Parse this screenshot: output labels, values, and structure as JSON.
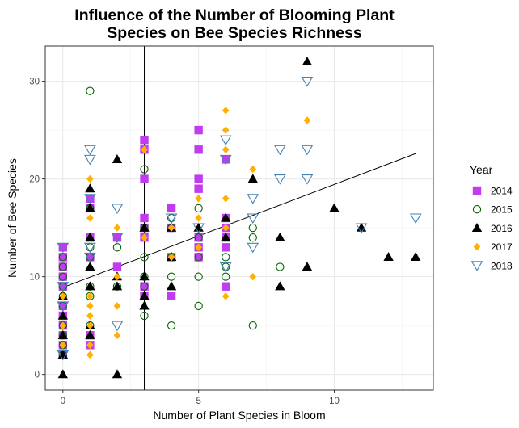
{
  "chart_data": {
    "type": "scatter",
    "title_lines": [
      "Influence of the Number of Blooming Plant",
      "Species on Bee Species Richness"
    ],
    "xlabel": "Number of Plant Species in Bloom",
    "ylabel": "Number of Bee Species",
    "xlim": [
      -0.65,
      13.65
    ],
    "ylim": [
      -1.6,
      33.6
    ],
    "x_ticks": [
      0,
      5,
      10
    ],
    "y_ticks": [
      0,
      10,
      20,
      30
    ],
    "grid": true,
    "legend_title": "Year",
    "legend_position": "right",
    "vline_x": 3,
    "trend_line": {
      "x": [
        0,
        13
      ],
      "y": [
        8.9,
        22.6
      ]
    },
    "series": [
      {
        "name": "2014",
        "marker": "square",
        "color": "#c13cf0",
        "points": [
          [
            0,
            13
          ],
          [
            0,
            12
          ],
          [
            0,
            11
          ],
          [
            0,
            10
          ],
          [
            0,
            9
          ],
          [
            0,
            7
          ],
          [
            0,
            6
          ],
          [
            0,
            5
          ],
          [
            0,
            4
          ],
          [
            0,
            3
          ],
          [
            0,
            2
          ],
          [
            1,
            18
          ],
          [
            1,
            17
          ],
          [
            1,
            14
          ],
          [
            1,
            12
          ],
          [
            1,
            4
          ],
          [
            1,
            3
          ],
          [
            2,
            14
          ],
          [
            2,
            11
          ],
          [
            3,
            24
          ],
          [
            3,
            23
          ],
          [
            3,
            20
          ],
          [
            3,
            16
          ],
          [
            3,
            15
          ],
          [
            3,
            14
          ],
          [
            3,
            9
          ],
          [
            3,
            8
          ],
          [
            4,
            17
          ],
          [
            4,
            15
          ],
          [
            4,
            12
          ],
          [
            4,
            8
          ],
          [
            5,
            25
          ],
          [
            5,
            23
          ],
          [
            5,
            20
          ],
          [
            5,
            19
          ],
          [
            5,
            14
          ],
          [
            5,
            13
          ],
          [
            5,
            12
          ],
          [
            6,
            22
          ],
          [
            6,
            16
          ],
          [
            6,
            15
          ],
          [
            6,
            14
          ],
          [
            6,
            13
          ],
          [
            6,
            9
          ]
        ]
      },
      {
        "name": "2015",
        "marker": "circle-open",
        "color": "#006400",
        "points": [
          [
            0,
            12
          ],
          [
            0,
            11
          ],
          [
            0,
            10
          ],
          [
            0,
            9
          ],
          [
            0,
            8
          ],
          [
            0,
            7
          ],
          [
            0,
            5
          ],
          [
            0,
            4
          ],
          [
            0,
            3
          ],
          [
            0,
            2
          ],
          [
            1,
            29
          ],
          [
            1,
            17
          ],
          [
            1,
            13
          ],
          [
            1,
            12
          ],
          [
            1,
            9
          ],
          [
            1,
            8
          ],
          [
            1,
            5
          ],
          [
            2,
            13
          ],
          [
            2,
            9
          ],
          [
            3,
            21
          ],
          [
            3,
            15
          ],
          [
            3,
            12
          ],
          [
            3,
            10
          ],
          [
            3,
            9
          ],
          [
            3,
            6
          ],
          [
            4,
            16
          ],
          [
            4,
            15
          ],
          [
            4,
            12
          ],
          [
            4,
            10
          ],
          [
            4,
            5
          ],
          [
            5,
            17
          ],
          [
            5,
            14
          ],
          [
            5,
            12
          ],
          [
            5,
            10
          ],
          [
            5,
            7
          ],
          [
            6,
            12
          ],
          [
            6,
            11
          ],
          [
            6,
            10
          ],
          [
            7,
            15
          ],
          [
            7,
            14
          ],
          [
            7,
            5
          ],
          [
            8,
            11
          ]
        ]
      },
      {
        "name": "2016",
        "marker": "triangle",
        "color": "#000000",
        "points": [
          [
            0,
            8
          ],
          [
            0,
            6
          ],
          [
            0,
            4
          ],
          [
            0,
            2
          ],
          [
            0,
            0
          ],
          [
            1,
            19
          ],
          [
            1,
            17
          ],
          [
            1,
            14
          ],
          [
            1,
            11
          ],
          [
            1,
            9
          ],
          [
            1,
            5
          ],
          [
            1,
            4
          ],
          [
            2,
            22
          ],
          [
            2,
            10
          ],
          [
            2,
            9
          ],
          [
            2,
            0
          ],
          [
            3,
            15
          ],
          [
            3,
            10
          ],
          [
            3,
            8
          ],
          [
            3,
            7
          ],
          [
            4,
            15
          ],
          [
            4,
            12
          ],
          [
            4,
            9
          ],
          [
            5,
            15
          ],
          [
            6,
            16
          ],
          [
            6,
            14
          ],
          [
            7,
            20
          ],
          [
            8,
            14
          ],
          [
            8,
            9
          ],
          [
            9,
            32
          ],
          [
            9,
            11
          ],
          [
            10,
            17
          ],
          [
            11,
            15
          ],
          [
            12,
            12
          ],
          [
            13,
            12
          ]
        ]
      },
      {
        "name": "2017",
        "marker": "diamond",
        "color": "#ffb000",
        "points": [
          [
            0,
            8
          ],
          [
            0,
            5
          ],
          [
            0,
            3
          ],
          [
            1,
            20
          ],
          [
            1,
            16
          ],
          [
            1,
            8
          ],
          [
            1,
            7
          ],
          [
            1,
            6
          ],
          [
            1,
            5
          ],
          [
            1,
            3
          ],
          [
            1,
            2
          ],
          [
            2,
            15
          ],
          [
            2,
            10
          ],
          [
            2,
            7
          ],
          [
            2,
            4
          ],
          [
            3,
            23
          ],
          [
            3,
            14
          ],
          [
            4,
            15
          ],
          [
            4,
            12
          ],
          [
            5,
            18
          ],
          [
            5,
            16
          ],
          [
            5,
            13
          ],
          [
            6,
            27
          ],
          [
            6,
            25
          ],
          [
            6,
            23
          ],
          [
            6,
            18
          ],
          [
            6,
            15
          ],
          [
            6,
            8
          ],
          [
            7,
            21
          ],
          [
            7,
            10
          ],
          [
            9,
            26
          ]
        ]
      },
      {
        "name": "2018",
        "marker": "triangle-down-open",
        "color": "#4682b4",
        "points": [
          [
            0,
            13
          ],
          [
            0,
            9
          ],
          [
            0,
            7
          ],
          [
            0,
            2
          ],
          [
            1,
            23
          ],
          [
            1,
            22
          ],
          [
            1,
            18
          ],
          [
            1,
            13
          ],
          [
            1,
            12
          ],
          [
            2,
            17
          ],
          [
            2,
            14
          ],
          [
            2,
            5
          ],
          [
            4,
            16
          ],
          [
            5,
            15
          ],
          [
            6,
            24
          ],
          [
            6,
            22
          ],
          [
            6,
            11
          ],
          [
            7,
            18
          ],
          [
            7,
            16
          ],
          [
            7,
            13
          ],
          [
            8,
            23
          ],
          [
            8,
            20
          ],
          [
            9,
            30
          ],
          [
            9,
            23
          ],
          [
            9,
            20
          ],
          [
            11,
            15
          ],
          [
            13,
            16
          ]
        ]
      }
    ]
  }
}
